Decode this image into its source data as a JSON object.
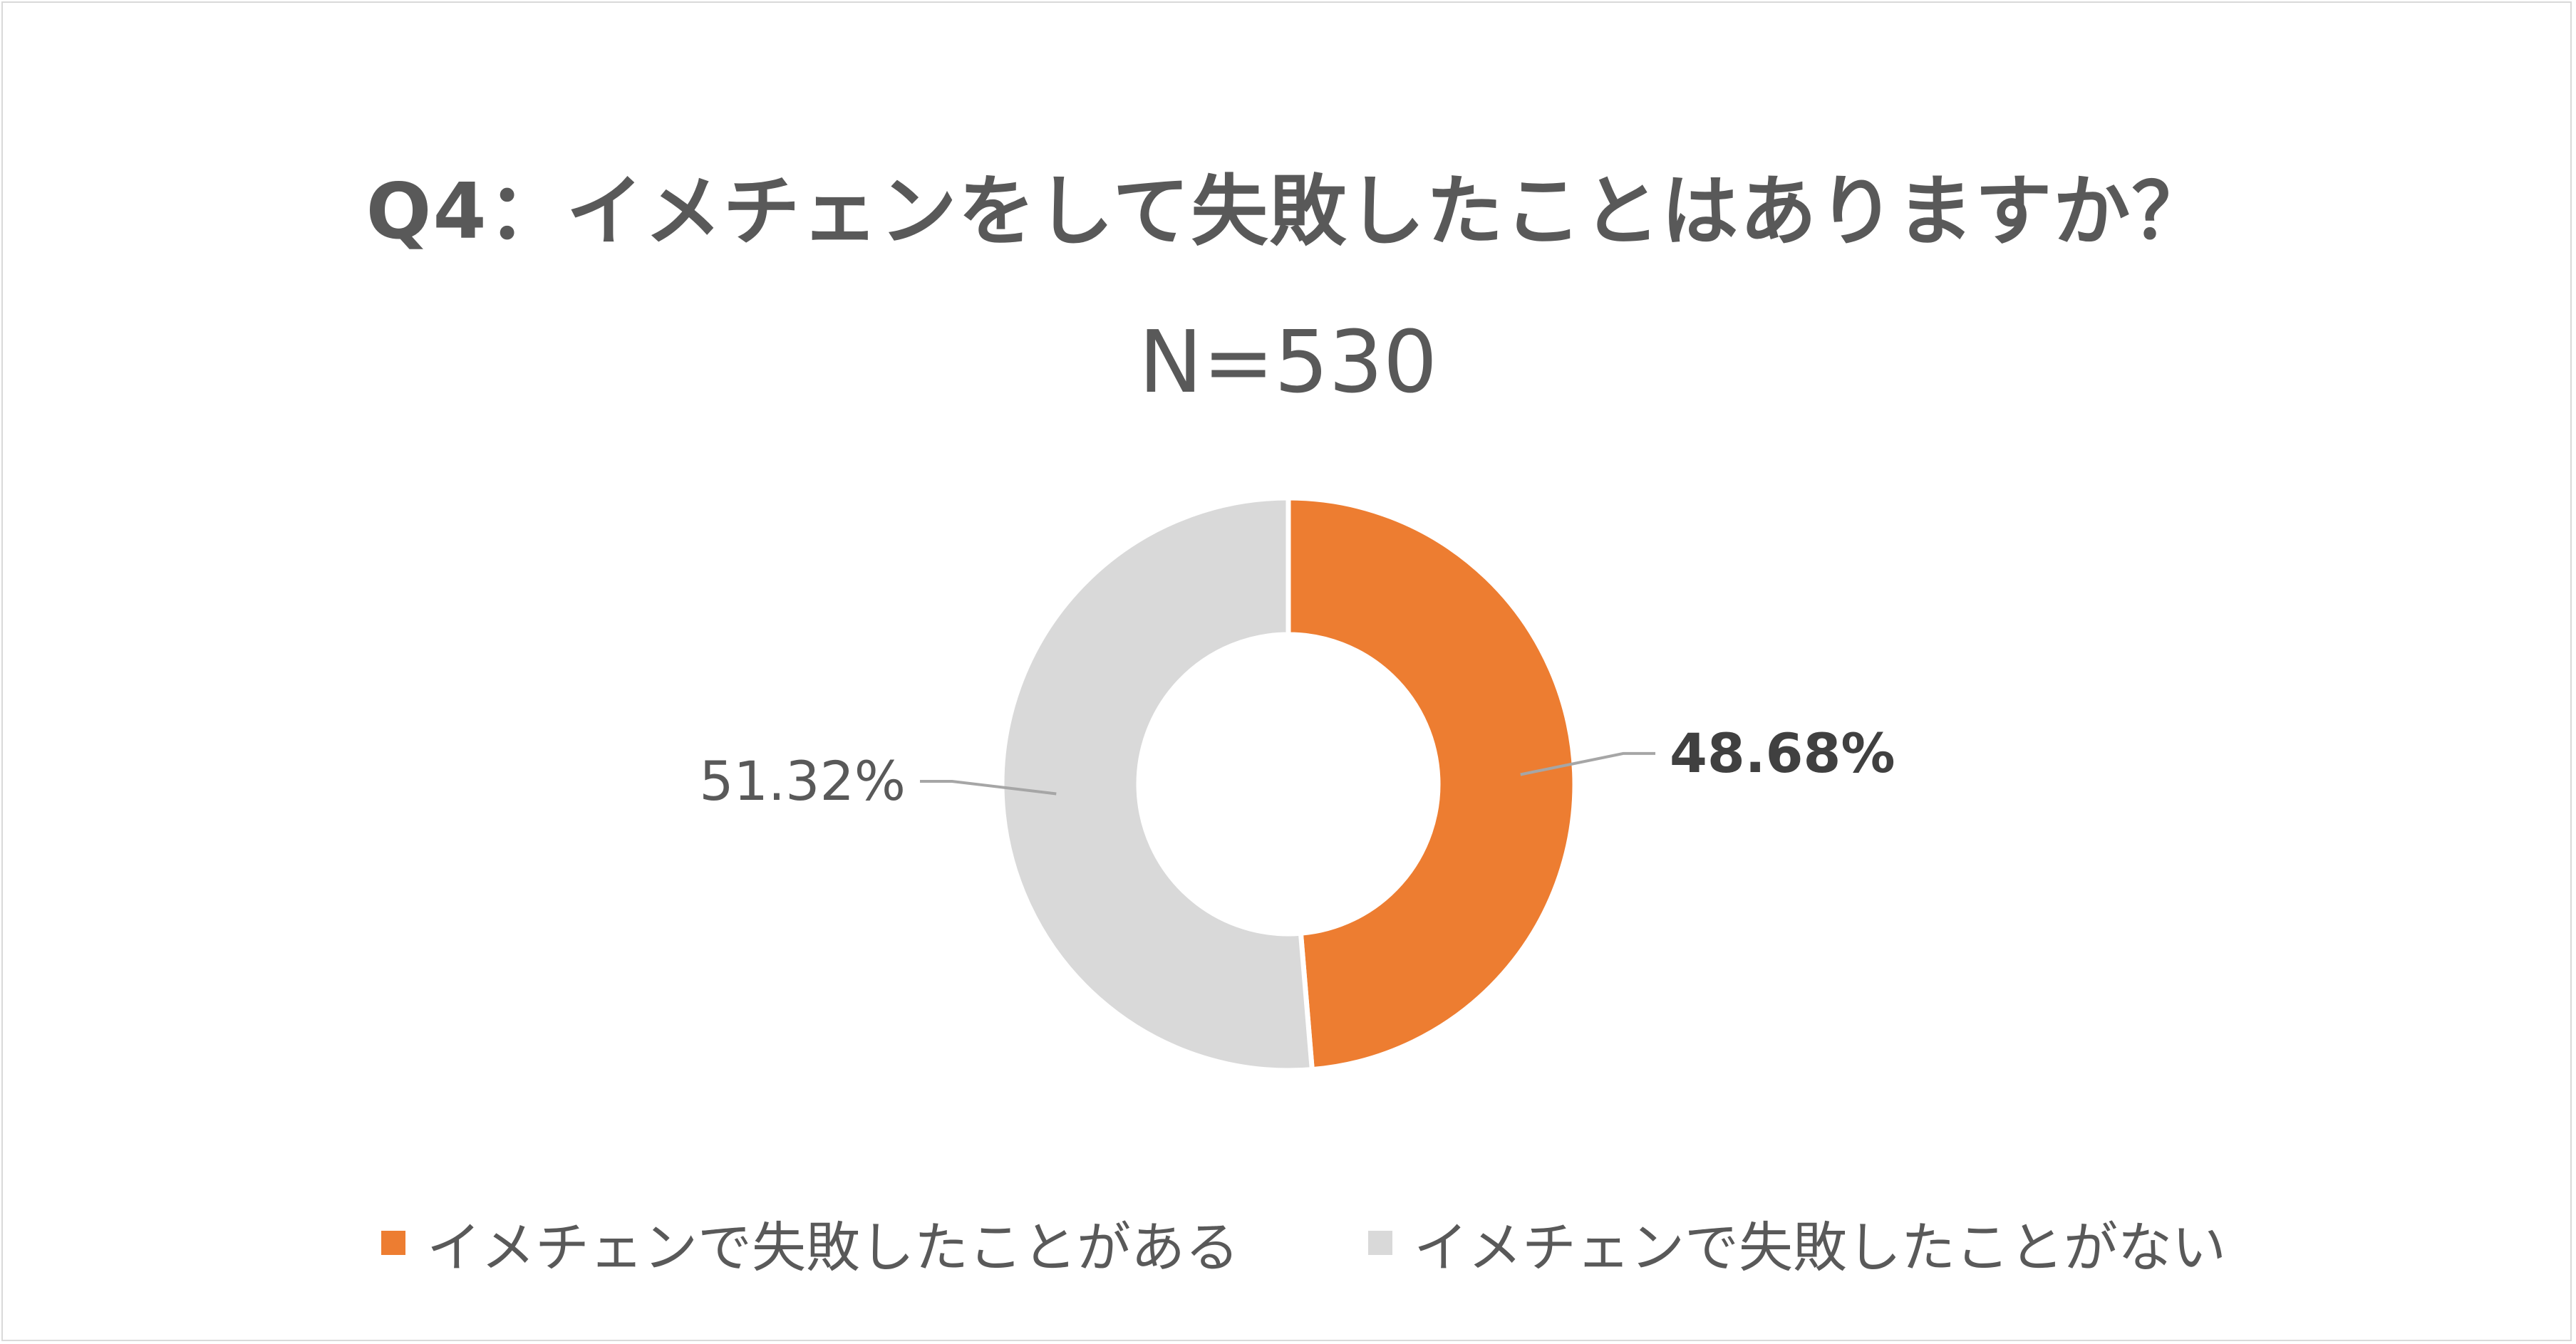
{
  "chart_data": {
    "type": "pie",
    "variant": "donut",
    "title": "Q4：イメチェンをして失敗したことはありますか？",
    "subtitle": "N=530",
    "categories": [
      "イメチェンで失敗したことがある",
      "イメチェンで失敗したことがない"
    ],
    "values": [
      48.68,
      51.32
    ],
    "data_labels": [
      "48.68%",
      "51.32%"
    ],
    "colors": [
      "#ED7D31",
      "#D9D9D9"
    ],
    "start_angle_deg": 0,
    "direction": "clockwise",
    "legend_position": "bottom"
  }
}
